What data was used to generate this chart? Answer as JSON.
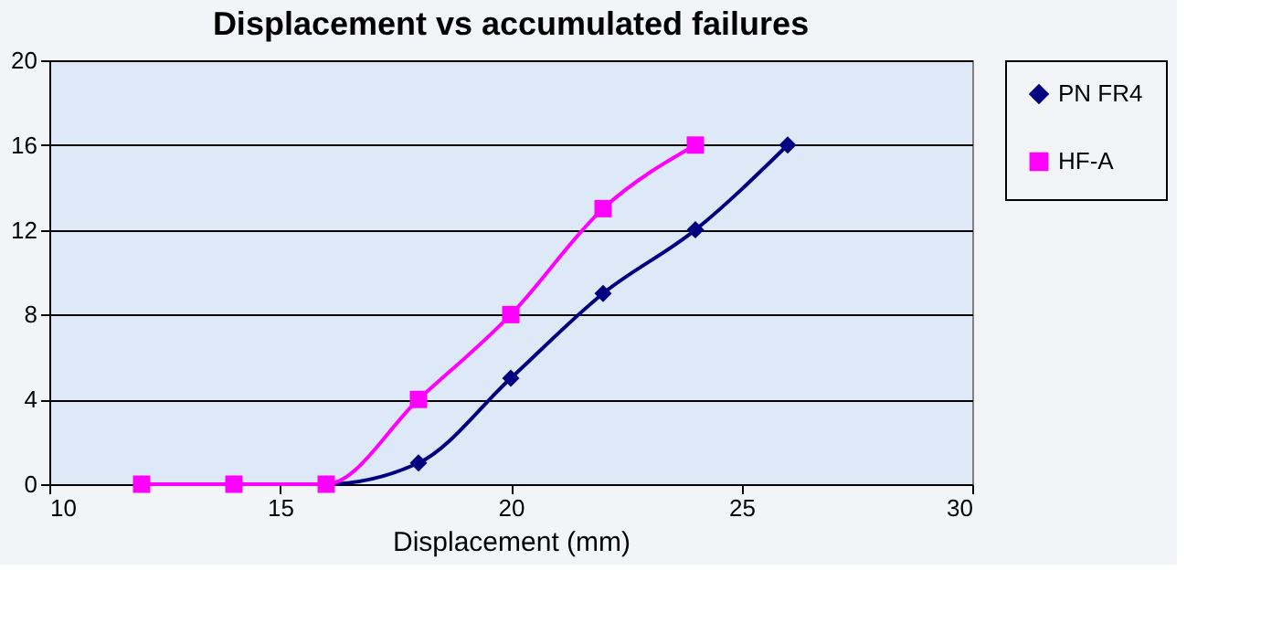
{
  "chart_data": {
    "type": "line",
    "title": "Displacement vs accumulated failures",
    "xlabel": "Displacement (mm)",
    "xlim": [
      10,
      30
    ],
    "xticks": [
      10,
      15,
      20,
      25,
      30
    ],
    "ylim": [
      0,
      20
    ],
    "yticks": [
      0,
      4,
      8,
      12,
      16,
      20
    ],
    "grid": "y",
    "legend": "right",
    "series": [
      {
        "name": "PN FR4",
        "color": "#000080",
        "marker": "diamond",
        "line_style": "solid",
        "x": [
          12,
          14,
          16,
          18,
          20,
          22,
          24,
          26
        ],
        "values": [
          0,
          0,
          0,
          1,
          5,
          9,
          12,
          16
        ]
      },
      {
        "name": "HF-A",
        "color": "#ff00ff",
        "marker": "square",
        "line_style": "solid",
        "x": [
          12,
          14,
          16,
          18,
          20,
          22,
          24
        ],
        "values": [
          0,
          0,
          0,
          4,
          8,
          13,
          16
        ]
      }
    ]
  }
}
